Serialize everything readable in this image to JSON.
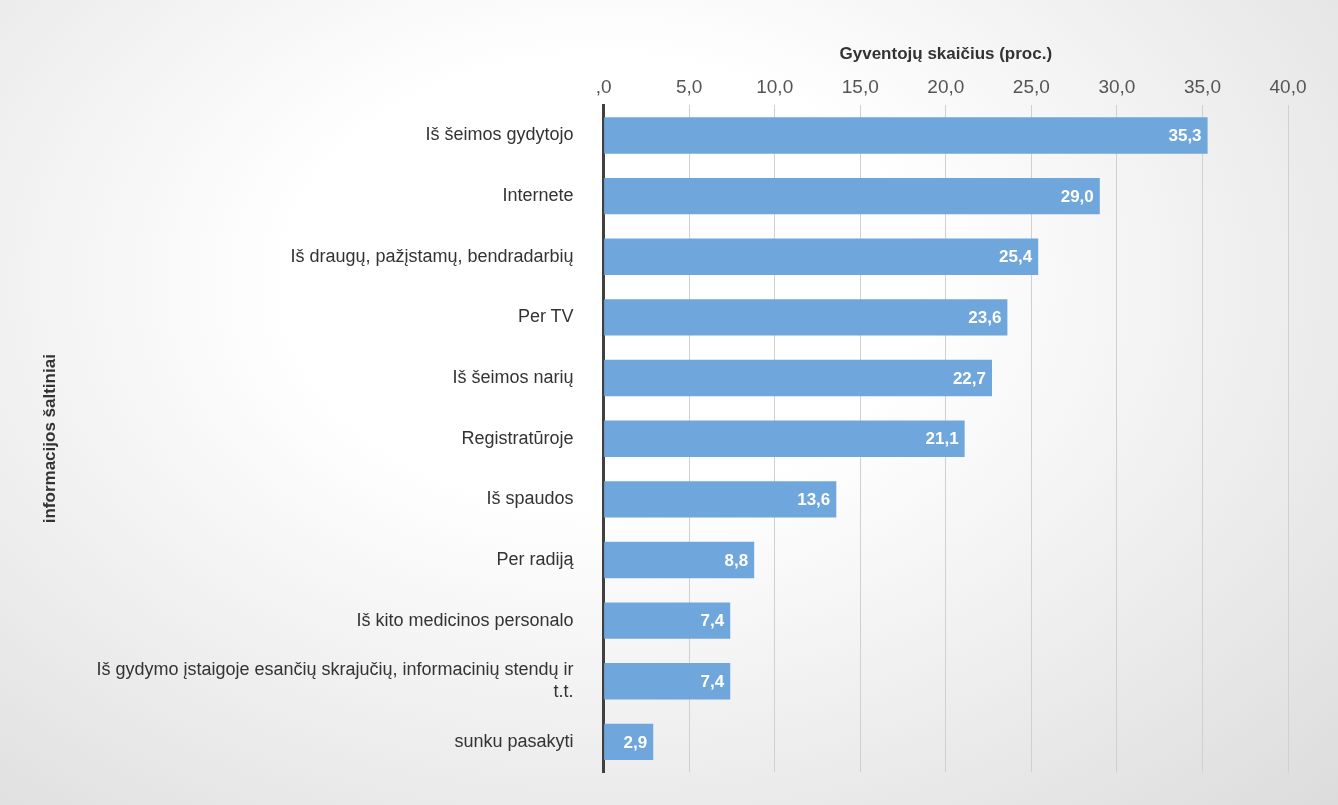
{
  "chart_data": {
    "type": "bar",
    "orientation": "horizontal",
    "xlabel": "Gyventojų skaičius (proc.)",
    "ylabel": "informacijos šaltiniai",
    "categories": [
      "Iš šeimos gydytojo",
      "Internete",
      "Iš draugų, pažįstamų, bendradarbių",
      "Per TV",
      "Iš šeimos narių",
      "Registratūroje",
      "Iš spaudos",
      "Per radiją",
      "Iš kito medicinos personalo",
      "Iš gydymo įstaigoje esančių skrajučių, informacinių stendų ir t.t.",
      "sunku pasakyti"
    ],
    "values": [
      35.3,
      29.0,
      25.4,
      23.6,
      22.7,
      21.1,
      13.6,
      8.8,
      7.4,
      7.4,
      2.9
    ],
    "value_labels": [
      "35,3",
      "29,0",
      "25,4",
      "23,6",
      "22,7",
      "21,1",
      "13,6",
      "8,8",
      "7,4",
      "7,4",
      "2,9"
    ],
    "color": "#6fa6dc",
    "xlim": [
      0,
      40
    ],
    "xticks": [
      {
        "value": 0,
        "label": ",0"
      },
      {
        "value": 5,
        "label": "5,0"
      },
      {
        "value": 10,
        "label": "10,0"
      },
      {
        "value": 15,
        "label": "15,0"
      },
      {
        "value": 20,
        "label": "20,0"
      },
      {
        "value": 25,
        "label": "25,0"
      },
      {
        "value": 30,
        "label": "30,0"
      },
      {
        "value": 35,
        "label": "35,0"
      },
      {
        "value": 40,
        "label": "40,0"
      }
    ],
    "grid": "x",
    "legend": false
  }
}
